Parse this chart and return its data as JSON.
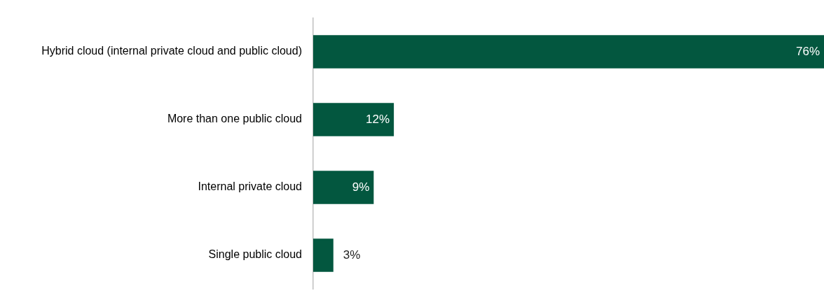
{
  "chart_data": {
    "type": "bar",
    "orientation": "horizontal",
    "categories": [
      "Hybrid cloud (internal private cloud and public cloud)",
      "More than one public cloud",
      "Internal private cloud",
      "Single public cloud"
    ],
    "values": [
      76,
      12,
      9,
      3
    ],
    "color": "#03573f",
    "value_labels": [
      "76%",
      "12%",
      "9%",
      "3%"
    ],
    "tick_labels": "y"
  }
}
